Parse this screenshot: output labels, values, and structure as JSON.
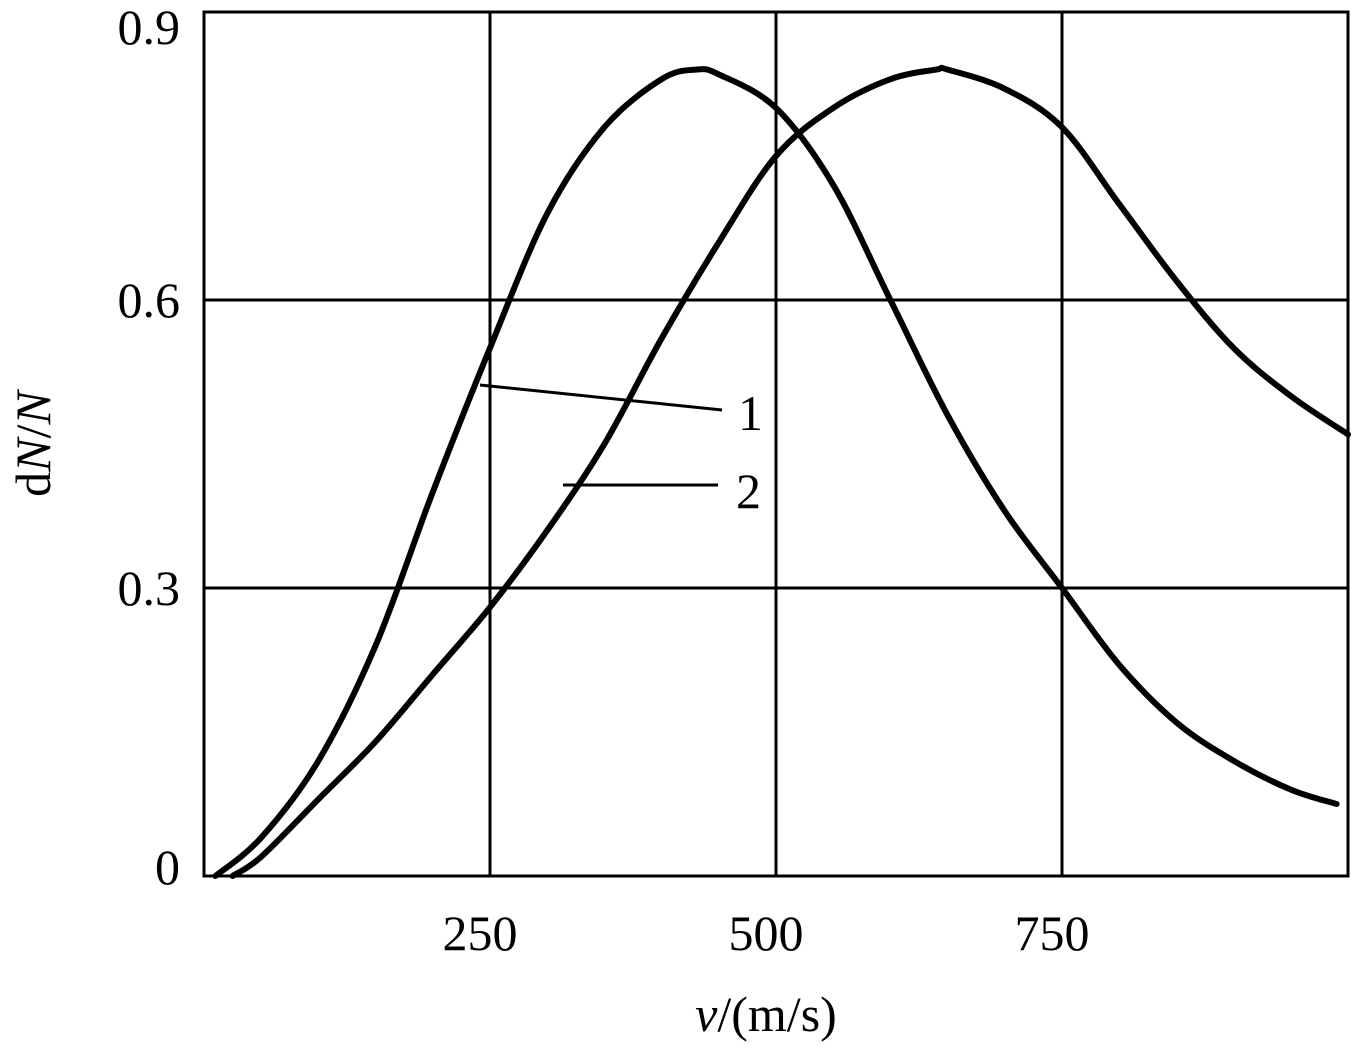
{
  "chart_data": {
    "type": "line",
    "title": "",
    "xlabel_var": "v",
    "xlabel_unit": "/(m/s)",
    "ylabel_parts": [
      "d",
      "N",
      "/",
      "N"
    ],
    "xlim": [
      0,
      1000
    ],
    "ylim": [
      0,
      0.9
    ],
    "xticks": [
      250,
      500,
      750
    ],
    "xtick_labels": [
      "250",
      "500",
      "750"
    ],
    "yticks": [
      0,
      0.3,
      0.6,
      0.9
    ],
    "ytick_labels": [
      "0",
      "0.3",
      "0.6",
      "0.9"
    ],
    "grid": true,
    "series": [
      {
        "name": "1",
        "x": [
          10,
          50,
          100,
          150,
          200,
          250,
          300,
          350,
          400,
          430,
          450,
          500,
          550,
          600,
          650,
          700,
          750,
          800,
          850,
          900,
          950,
          990
        ],
        "y": [
          0.0,
          0.04,
          0.12,
          0.24,
          0.4,
          0.55,
          0.69,
          0.78,
          0.83,
          0.84,
          0.835,
          0.8,
          0.72,
          0.6,
          0.48,
          0.38,
          0.3,
          0.22,
          0.16,
          0.12,
          0.09,
          0.075
        ]
      },
      {
        "name": "2",
        "x": [
          25,
          50,
          100,
          150,
          200,
          250,
          300,
          350,
          400,
          450,
          500,
          550,
          600,
          640,
          650,
          700,
          750,
          800,
          850,
          900,
          950,
          1000
        ],
        "y": [
          0.0,
          0.02,
          0.08,
          0.14,
          0.21,
          0.28,
          0.36,
          0.45,
          0.56,
          0.66,
          0.75,
          0.8,
          0.83,
          0.84,
          0.84,
          0.82,
          0.78,
          0.7,
          0.62,
          0.55,
          0.5,
          0.46
        ]
      }
    ],
    "annotations": [
      {
        "text": "1",
        "series": "1"
      },
      {
        "text": "2",
        "series": "2"
      }
    ]
  }
}
